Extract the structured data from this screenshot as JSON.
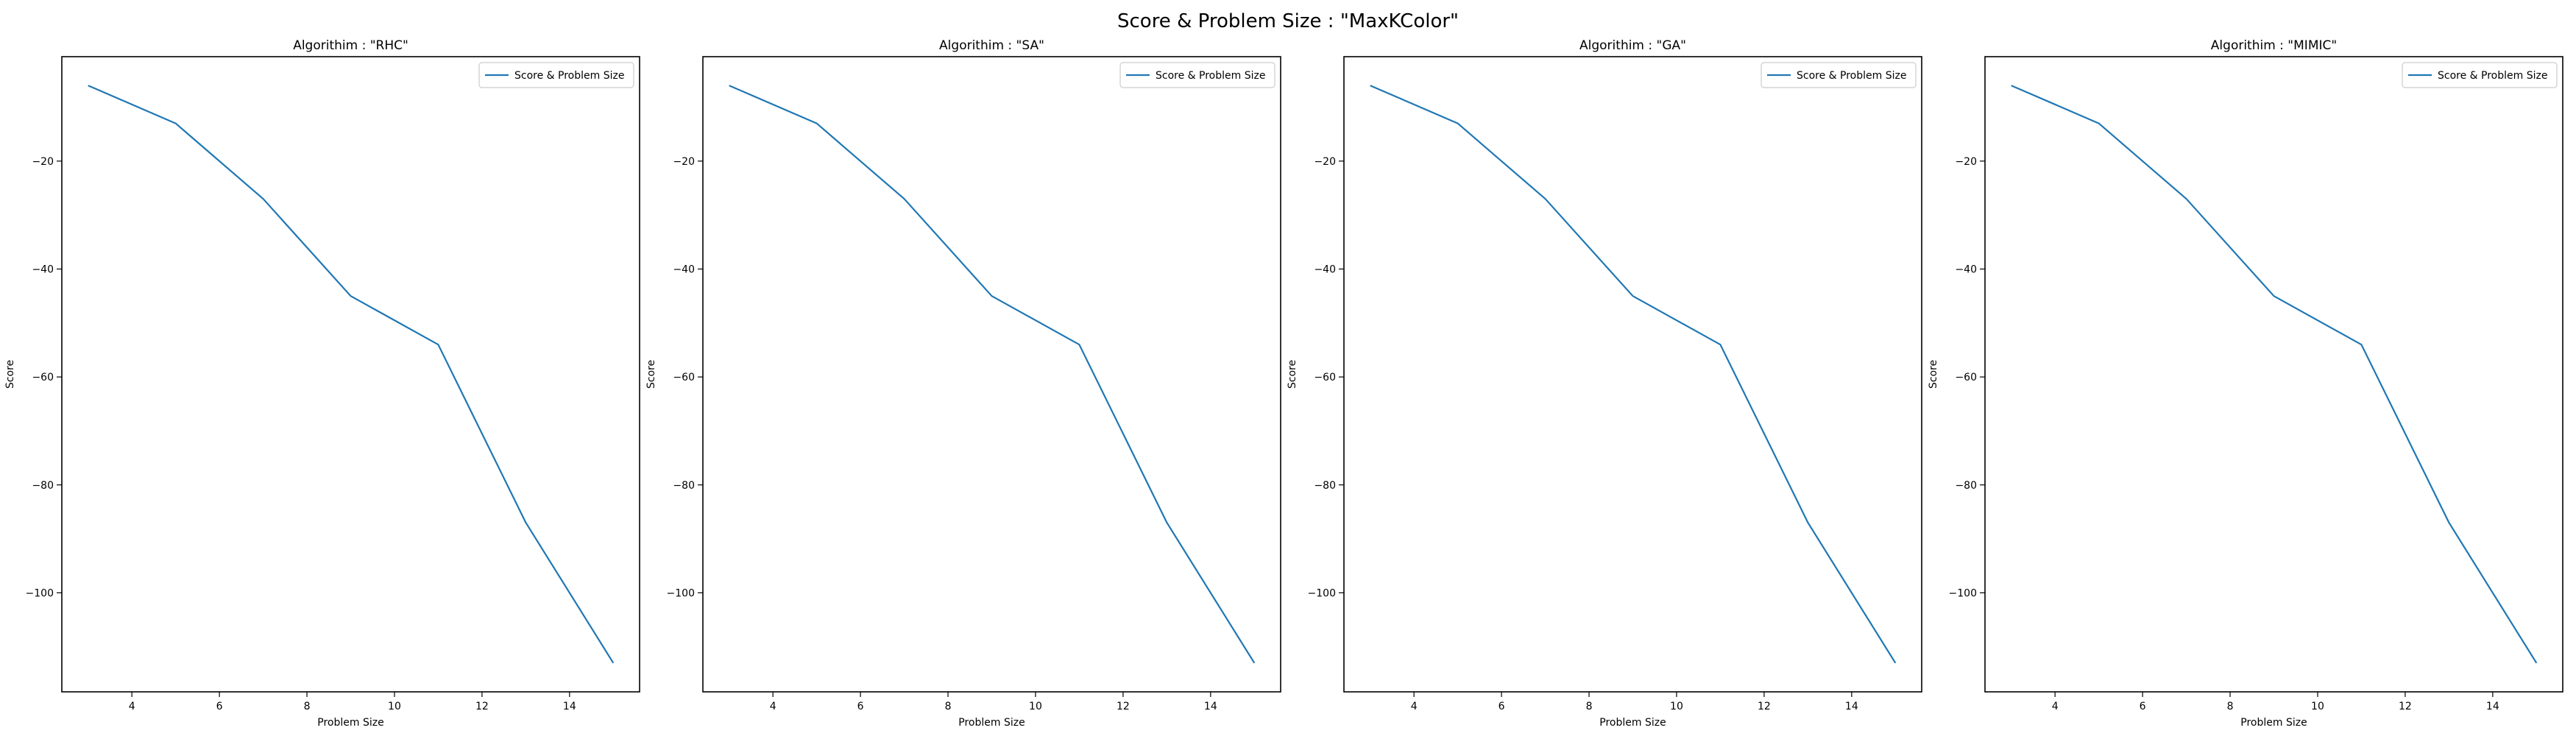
{
  "figure": {
    "suptitle": "Score & Problem Size : \"MaxKColor\""
  },
  "chart_data": [
    {
      "type": "line",
      "title": "Algorithim : \"RHC\"",
      "xlabel": "Problem Size",
      "ylabel": "Score",
      "x": [
        3,
        5,
        7,
        9,
        11,
        13,
        15
      ],
      "series": [
        {
          "name": "Score & Problem Size",
          "values": [
            -6,
            -13,
            -27,
            -45,
            -54,
            -87,
            -113
          ],
          "color": "#1f77b4"
        }
      ],
      "xlim": [
        2.4,
        15.6
      ],
      "ylim": [
        -118.35,
        -0.65
      ],
      "xticks": [
        4,
        6,
        8,
        10,
        12,
        14
      ],
      "yticks": [
        -20,
        -40,
        -60,
        -80,
        -100
      ],
      "legend_position": "top-right",
      "grid": false
    },
    {
      "type": "line",
      "title": "Algorithim : \"SA\"",
      "xlabel": "Problem Size",
      "ylabel": "Score",
      "x": [
        3,
        5,
        7,
        9,
        11,
        13,
        15
      ],
      "series": [
        {
          "name": "Score & Problem Size",
          "values": [
            -6,
            -13,
            -27,
            -45,
            -54,
            -87,
            -113
          ],
          "color": "#1f77b4"
        }
      ],
      "xlim": [
        2.4,
        15.6
      ],
      "ylim": [
        -118.35,
        -0.65
      ],
      "xticks": [
        4,
        6,
        8,
        10,
        12,
        14
      ],
      "yticks": [
        -20,
        -40,
        -60,
        -80,
        -100
      ],
      "legend_position": "top-right",
      "grid": false
    },
    {
      "type": "line",
      "title": "Algorithim : \"GA\"",
      "xlabel": "Problem Size",
      "ylabel": "Score",
      "x": [
        3,
        5,
        7,
        9,
        11,
        13,
        15
      ],
      "series": [
        {
          "name": "Score & Problem Size",
          "values": [
            -6,
            -13,
            -27,
            -45,
            -54,
            -87,
            -113
          ],
          "color": "#1f77b4"
        }
      ],
      "xlim": [
        2.4,
        15.6
      ],
      "ylim": [
        -118.35,
        -0.65
      ],
      "xticks": [
        4,
        6,
        8,
        10,
        12,
        14
      ],
      "yticks": [
        -20,
        -40,
        -60,
        -80,
        -100
      ],
      "legend_position": "top-right",
      "grid": false
    },
    {
      "type": "line",
      "title": "Algorithim : \"MIMIC\"",
      "xlabel": "Problem Size",
      "ylabel": "Score",
      "x": [
        3,
        5,
        7,
        9,
        11,
        13,
        15
      ],
      "series": [
        {
          "name": "Score & Problem Size",
          "values": [
            -6,
            -13,
            -27,
            -45,
            -54,
            -87,
            -113
          ],
          "color": "#1f77b4"
        }
      ],
      "xlim": [
        2.4,
        15.6
      ],
      "ylim": [
        -118.35,
        -0.65
      ],
      "xticks": [
        4,
        6,
        8,
        10,
        12,
        14
      ],
      "yticks": [
        -20,
        -40,
        -60,
        -80,
        -100
      ],
      "legend_position": "top-right",
      "grid": false
    }
  ]
}
